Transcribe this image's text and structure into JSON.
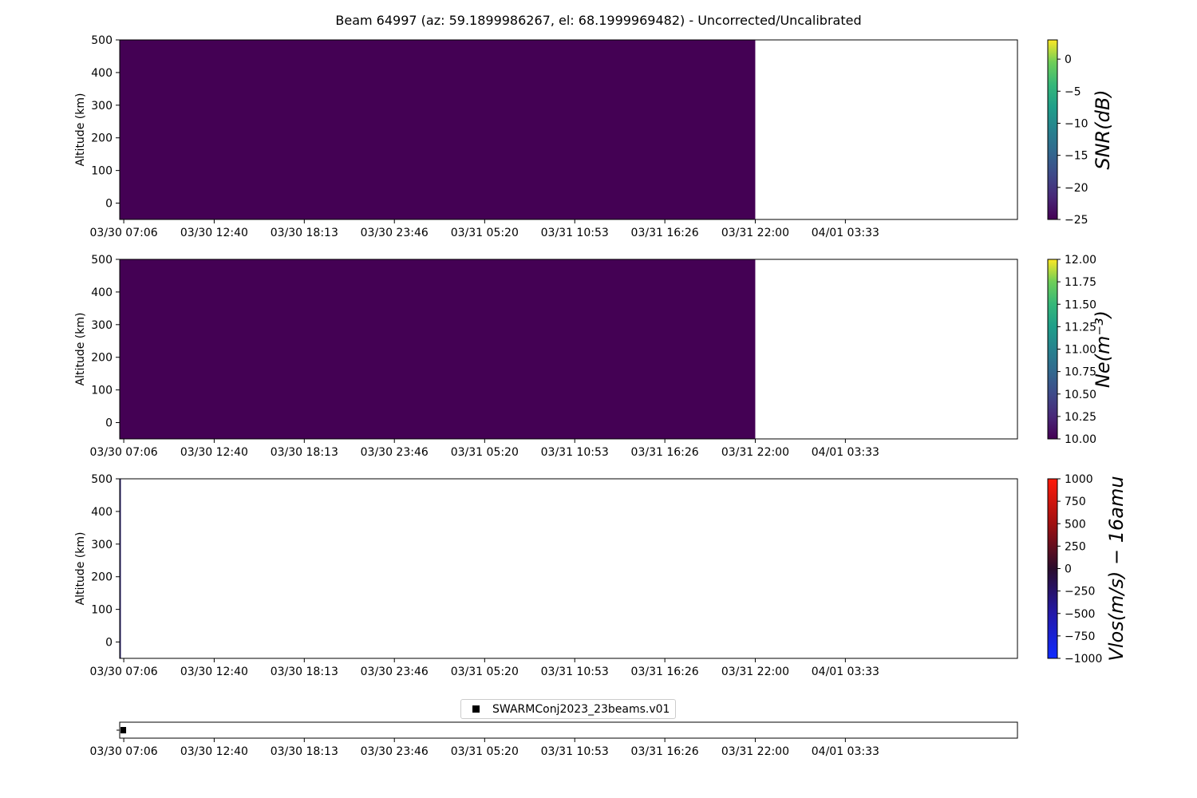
{
  "title": "Beam 64997 (az: 59.1899986267, el: 68.1999969482) - Uncorrected/Uncalibrated",
  "time_ticks": [
    "03/30 07:06",
    "03/30 12:40",
    "03/30 18:13",
    "03/30 23:46",
    "03/31 05:20",
    "03/31 10:53",
    "03/31 16:26",
    "03/31 22:00",
    "04/01 03:33"
  ],
  "legend": {
    "label": "SWARMConj2023_23beams.v01"
  },
  "chart_data": [
    {
      "type": "heatmap",
      "ylabel": "Altitude (km)",
      "yticks": [
        0,
        100,
        200,
        300,
        400,
        500
      ],
      "ylim": [
        -50,
        500
      ],
      "xlim_hours": [
        0,
        55.3
      ],
      "x_tick_hours": [
        0.25,
        5.82,
        11.37,
        16.92,
        22.48,
        28.03,
        33.58,
        39.15,
        44.7
      ],
      "data_extent_hours": [
        0,
        39.15
      ],
      "fill_value": -25,
      "colorbar": {
        "label": "SNR(dB)",
        "colormap": "viridis",
        "range": [
          -25,
          3
        ],
        "ticks": [
          "0",
          "−5",
          "−10",
          "−15",
          "−20",
          "−25"
        ],
        "tick_values": [
          0,
          -5,
          -10,
          -15,
          -20,
          -25
        ]
      },
      "fill_color": "#440154"
    },
    {
      "type": "heatmap",
      "ylabel": "Altitude (km)",
      "yticks": [
        0,
        100,
        200,
        300,
        400,
        500
      ],
      "ylim": [
        -50,
        500
      ],
      "xlim_hours": [
        0,
        55.3
      ],
      "x_tick_hours": [
        0.25,
        5.82,
        11.37,
        16.92,
        22.48,
        28.03,
        33.58,
        39.15,
        44.7
      ],
      "data_extent_hours": [
        0,
        39.15
      ],
      "fill_value": 10,
      "colorbar": {
        "label": "Ne(m⁻³)",
        "colormap": "viridis",
        "range": [
          10,
          12
        ],
        "ticks": [
          "12.00",
          "11.75",
          "11.50",
          "11.25",
          "11.00",
          "10.75",
          "10.50",
          "10.25",
          "10.00"
        ],
        "tick_values": [
          12,
          11.75,
          11.5,
          11.25,
          11,
          10.75,
          10.5,
          10.25,
          10
        ]
      },
      "fill_color": "#440154"
    },
    {
      "type": "heatmap",
      "ylabel": "Altitude (km)",
      "yticks": [
        0,
        100,
        200,
        300,
        400,
        500
      ],
      "ylim": [
        -50,
        500
      ],
      "xlim_hours": [
        0,
        55.3
      ],
      "x_tick_hours": [
        0.25,
        5.82,
        11.37,
        16.92,
        22.48,
        28.03,
        33.58,
        39.15,
        44.7
      ],
      "data_extent_hours": [
        0,
        0.05
      ],
      "colorbar": {
        "label": "Vlos(m/s) − 16amu",
        "colormap": "bwr",
        "range": [
          -1000,
          1000
        ],
        "ticks": [
          "1000",
          "750",
          "500",
          "250",
          "0",
          "−250",
          "−500",
          "−750",
          "−1000"
        ],
        "tick_values": [
          1000,
          750,
          500,
          250,
          0,
          -250,
          -500,
          -750,
          -1000
        ]
      },
      "fill_color": "#2a1f6e"
    },
    {
      "type": "scatter",
      "xlim_hours": [
        0,
        55.3
      ],
      "x_tick_hours": [
        0.25,
        5.82,
        11.37,
        16.92,
        22.48,
        28.03,
        33.58,
        39.15,
        44.7
      ],
      "points_hours": [
        0.1
      ],
      "series": [
        {
          "name": "SWARMConj2023_23beams.v01",
          "marker": "square",
          "color": "#000000"
        }
      ]
    }
  ]
}
